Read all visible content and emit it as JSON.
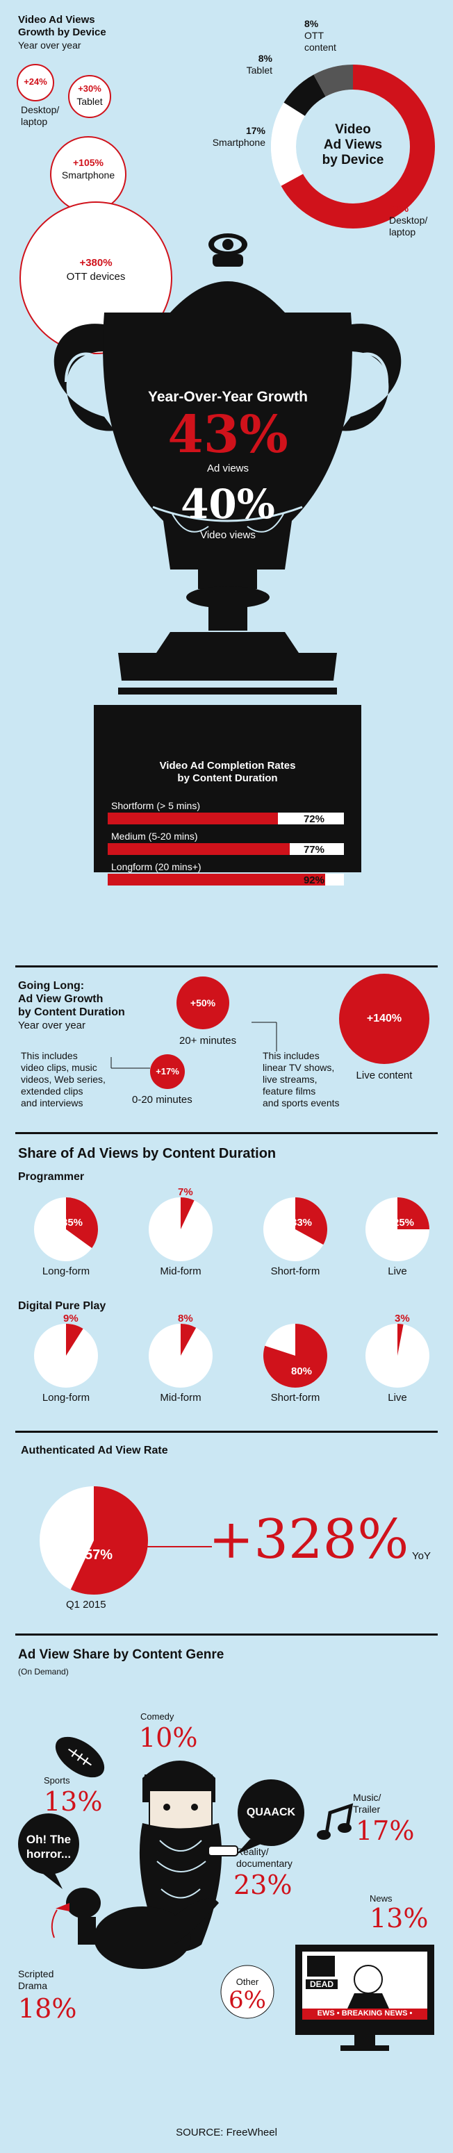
{
  "growth_by_device": {
    "title_line1": "Video Ad Views",
    "title_line2": "Growth by Device",
    "subtitle": "Year over year",
    "desktop": {
      "value": "+24%",
      "label_line1": "Desktop/",
      "label_line2": "laptop"
    },
    "tablet": {
      "value": "+30%",
      "label": "Tablet"
    },
    "smartphone": {
      "value": "+105%",
      "label": "Smartphone"
    },
    "ott": {
      "value": "+380%",
      "label": "OTT devices"
    }
  },
  "views_by_device": {
    "title_line1": "Video",
    "title_line2": "Ad Views",
    "title_line3": "by Device",
    "ott": {
      "value": "8%",
      "label_line1": "OTT",
      "label_line2": "content"
    },
    "tablet": {
      "value": "8%",
      "label": "Tablet"
    },
    "smartphone": {
      "value": "17%",
      "label": "Smartphone"
    },
    "desktop": {
      "value": "67%",
      "label_line1": "Desktop/",
      "label_line2": "laptop"
    }
  },
  "trophy": {
    "title": "Year-Over-Year Growth",
    "ad_views_value": "43%",
    "ad_views_label": "Ad views",
    "video_views_value": "40%",
    "video_views_label": "Video views",
    "completion_title_line1": "Video Ad Completion Rates",
    "completion_title_line2": "by Content Duration",
    "bars": [
      {
        "label": "Shortform (> 5 mins)",
        "value": "72%",
        "fraction": 0.72
      },
      {
        "label": "Medium  (5-20 mins)",
        "value": "77%",
        "fraction": 0.77
      },
      {
        "label": "Longform (20 mins+)",
        "value": "92%",
        "fraction": 0.92
      }
    ]
  },
  "going_long": {
    "title_line1": "Going Long:",
    "title_line2": "Ad View Growth",
    "title_line3": "by Content Duration",
    "subtitle": "Year over year",
    "note_short": [
      "This includes",
      "video clips, music",
      "videos, Web series,",
      "extended clips",
      "and interviews"
    ],
    "short": {
      "value": "+17%",
      "label": "0-20 minutes"
    },
    "long": {
      "value": "+50%",
      "label": "20+ minutes"
    },
    "note_long": [
      "This includes",
      "linear TV shows,",
      "live streams,",
      "feature films",
      "and sports events"
    ],
    "live": {
      "value": "+140%",
      "label": "Live content"
    }
  },
  "share_by_duration": {
    "title": "Share of Ad Views by Content Duration",
    "programmer_label": "Programmer",
    "programmer": [
      {
        "label": "Long-form",
        "value": "35%",
        "fraction": 0.35
      },
      {
        "label": "Mid-form",
        "value": "7%",
        "fraction": 0.07
      },
      {
        "label": "Short-form",
        "value": "33%",
        "fraction": 0.33
      },
      {
        "label": "Live",
        "value": "25%",
        "fraction": 0.25
      }
    ],
    "pureplay_label": "Digital Pure Play",
    "pureplay": [
      {
        "label": "Long-form",
        "value": "9%",
        "fraction": 0.09
      },
      {
        "label": "Mid-form",
        "value": "8%",
        "fraction": 0.08
      },
      {
        "label": "Short-form",
        "value": "80%",
        "fraction": 0.8
      },
      {
        "label": "Live",
        "value": "3%",
        "fraction": 0.03
      }
    ]
  },
  "authenticated": {
    "title": "Authenticated Ad View Rate",
    "value": "57%",
    "fraction": 0.57,
    "label": "Q1 2015",
    "growth": "+328%",
    "growth_unit": "YoY"
  },
  "genre": {
    "title": "Ad View Share by Content Genre",
    "subtitle": "(On Demand)",
    "sports": {
      "label": "Sports",
      "value": "13%"
    },
    "comedy": {
      "label": "Comedy",
      "value": "10%"
    },
    "quack": "QUAACK",
    "reality": {
      "label_line1": "Reality/",
      "label_line2": "documentary",
      "value": "23%"
    },
    "music": {
      "label_line1": "Music/",
      "label_line2": "Trailer",
      "value": "17%"
    },
    "horror_line1": "Oh! The",
    "horror_line2": "horror...",
    "drama": {
      "label_line1": "Scripted",
      "label_line2": "Drama",
      "value": "18%"
    },
    "other": {
      "label": "Other",
      "value": "6%"
    },
    "news": {
      "label": "News",
      "value": "13%"
    },
    "tv_dead": "DEAD",
    "tv_ticker": "EWS • BREAKING NEWS •"
  },
  "source": "SOURCE: FreeWheel",
  "colors": {
    "red": "#d0121b",
    "black": "#111111",
    "background": "#cbe7f3"
  }
}
